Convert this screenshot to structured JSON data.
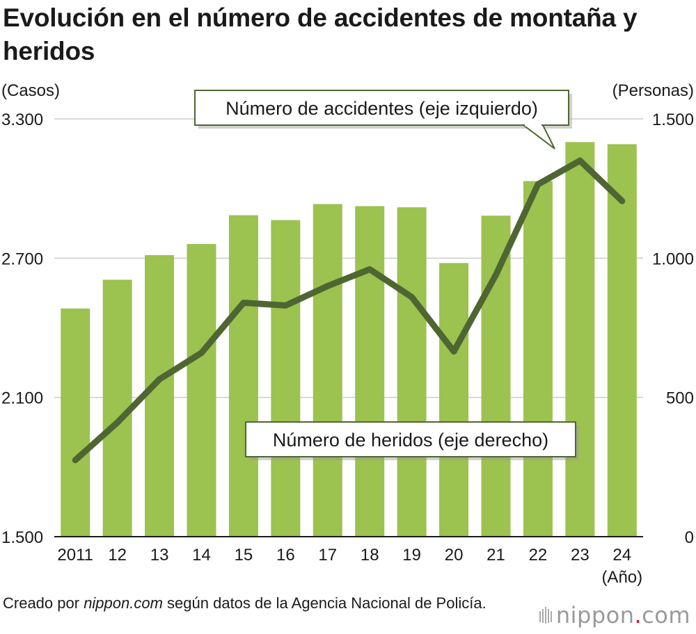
{
  "title": "Evolución en el número de accidentes de montaña y heridos",
  "footer": {
    "source_prefix": "Creado por ",
    "source_site": "nippon.com",
    "source_suffix": " según datos de la Agencia Nacional de Policía.",
    "brand_main": "nippon",
    "brand_dot": ".",
    "brand_tld": "com"
  },
  "colors": {
    "bar": "#9cc24f",
    "line": "#4f6633",
    "grid": "#cccccc",
    "callout_border": "#4f6633"
  },
  "chart_data": {
    "type": "bar+line",
    "left_axis": {
      "label": "(Casos)",
      "min": 1500,
      "max": 3300,
      "ticks": [
        1500,
        2100,
        2700,
        3300
      ],
      "tick_labels": [
        "1.500",
        "2.100",
        "2.700",
        "3.300"
      ]
    },
    "right_axis": {
      "label": "(Personas)",
      "min": 0,
      "max": 1500,
      "ticks": [
        0,
        500,
        1000,
        1500
      ],
      "tick_labels": [
        "0",
        "500",
        "1.000",
        "1.500"
      ]
    },
    "x_label": "(Año)",
    "categories": [
      "2011",
      "12",
      "13",
      "14",
      "15",
      "16",
      "17",
      "18",
      "19",
      "20",
      "21",
      "22",
      "23",
      "24"
    ],
    "grid": true,
    "series": [
      {
        "name": "Número de accidentes (eje izquierdo)",
        "type": "bar",
        "axis": "left",
        "values": [
          2483,
          2607,
          2713,
          2761,
          2885,
          2864,
          2933,
          2924,
          2919,
          2679,
          2883,
          3032,
          3200,
          3191
        ]
      },
      {
        "name": "Número de heridos (eje derecho)",
        "type": "line",
        "axis": "right",
        "values": [
          275,
          410,
          565,
          660,
          840,
          830,
          900,
          960,
          860,
          665,
          940,
          1265,
          1350,
          1205
        ]
      }
    ]
  }
}
